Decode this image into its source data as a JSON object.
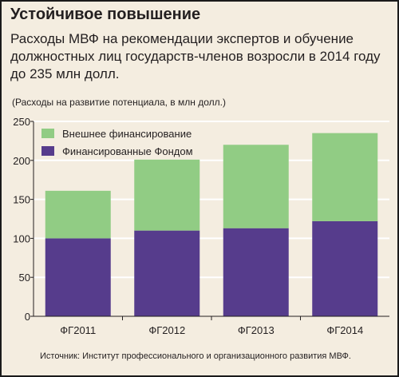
{
  "header": {
    "title": "Устойчивое повышение",
    "subtitle": "Расходы МВФ на рекомендации экспертов и обучение должностных лиц государств-членов возросли в 2014 году до 235 млн долл.",
    "unit_note": "(Расходы на развитие потенциала, в млн долл.)"
  },
  "source": "Источник: Институт профессионального и организационного развития МВФ.",
  "colors": {
    "background": "#f4ede0",
    "internal": "#563c8c",
    "external": "#91cc84",
    "grid": "#ffffff"
  },
  "chart_data": {
    "type": "bar",
    "stacked": true,
    "categories": [
      "ФГ2011",
      "ФГ2012",
      "ФГ2013",
      "ФГ2014"
    ],
    "series": [
      {
        "name": "Финансированные Фондом",
        "values": [
          100,
          110,
          113,
          122
        ],
        "color": "#563c8c"
      },
      {
        "name": "Внешнее финансирование",
        "values": [
          61,
          91,
          107,
          113
        ],
        "color": "#91cc84"
      }
    ],
    "y_ticks": [
      "0",
      "50",
      "100",
      "150",
      "200",
      "250"
    ],
    "ylim": [
      0,
      250
    ],
    "grid": true,
    "legend": "top-left"
  }
}
